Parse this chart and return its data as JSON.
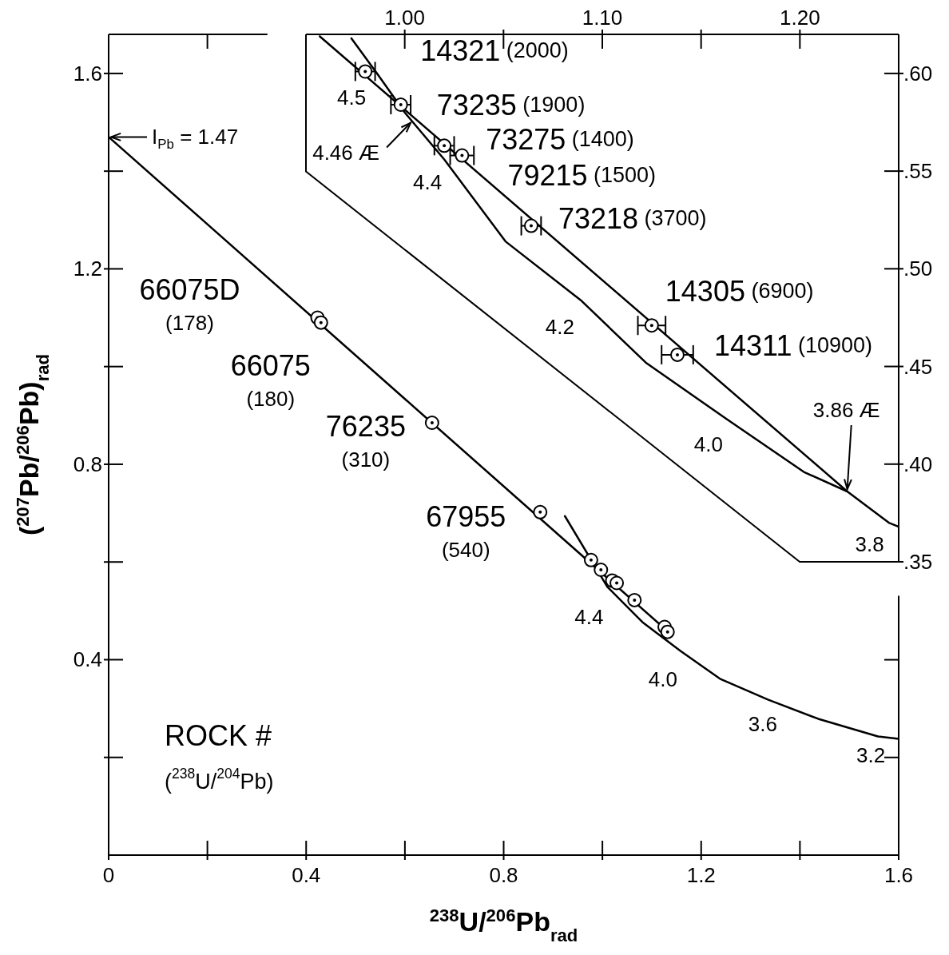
{
  "chart_data": [
    {
      "type": "scatter",
      "xlabel": "$^{238}$U/$^{206}$Pb$_{rad}$",
      "ylabel": "($^{207}$Pb/$^{206}$Pb)$_{rad}$",
      "xlim": [
        0,
        1.6
      ],
      "ylim": [
        0,
        1.68
      ],
      "xticks": [
        0,
        {
          "value": 0.2,
          "label": null
        },
        0.4,
        {
          "value": 0.6,
          "label": null
        },
        0.8,
        {
          "value": 1.0,
          "label": null
        },
        1.2,
        {
          "value": 1.4,
          "label": null
        },
        1.6
      ],
      "yticks": [
        {
          "value": 0.2,
          "label": null
        },
        0.4,
        {
          "value": 0.6,
          "label": null
        },
        0.8,
        {
          "value": 1.0,
          "label": null
        },
        1.2,
        {
          "value": 1.4,
          "label": null
        },
        1.6
      ],
      "series": [
        {
          "type": "line",
          "color": "#000000",
          "x": [
            0,
            1.13
          ],
          "values": [
            1.47,
            0.46
          ]
        },
        {
          "type": "line",
          "color": "#000000",
          "x": [
            0.924,
            1.01,
            1.081,
            1.158,
            1.238,
            1.336,
            1.437,
            1.558,
            1.6
          ],
          "values": [
            0.694,
            0.549,
            0.477,
            0.418,
            0.361,
            0.318,
            0.279,
            0.243,
            0.238
          ]
        },
        {
          "type": "scatter",
          "color": "#000000",
          "marker": "circle",
          "x": [
            0.423,
            0.43,
            0.655,
            0.874,
            0.977,
            0.997,
            1.02,
            1.029,
            1.065,
            1.126,
            1.132
          ],
          "values": [
            1.1,
            1.09,
            0.885,
            0.702,
            0.604,
            0.584,
            0.562,
            0.557,
            0.522,
            0.467,
            0.457
          ]
        }
      ],
      "annotations": [
        {
          "text": "I$_{Pb}$ = 1.47",
          "x": 0,
          "y": 1.47
        },
        {
          "text": "66075D (178)",
          "x": 0.423,
          "y": 1.1
        },
        {
          "text": "66075 (180)",
          "x": 0.43,
          "y": 1.09
        },
        {
          "text": "76235 (310)",
          "x": 0.655,
          "y": 0.885
        },
        {
          "text": "67955 (540)",
          "x": 0.874,
          "y": 0.702
        },
        {
          "text": "4.4",
          "x": 1.01,
          "y": 0.549
        },
        {
          "text": "4.0",
          "x": 1.158,
          "y": 0.418
        },
        {
          "text": "3.6",
          "x": 1.336,
          "y": 0.318
        },
        {
          "text": "3.2",
          "x": 1.558,
          "y": 0.243
        },
        "ROCK #",
        "($^{238}$U/$^{204}$Pb)"
      ]
    },
    {
      "type": "scatter",
      "xlim": [
        0.95,
        1.25
      ],
      "ylim": [
        0.35,
        0.62
      ],
      "xticks": [
        {
          "value": 1.0,
          "label": "1.00"
        },
        {
          "value": 1.05,
          "label": null
        },
        {
          "value": 1.1,
          "label": "1.10"
        },
        {
          "value": 1.15,
          "label": null
        },
        {
          "value": 1.2,
          "label": "1.20"
        }
      ],
      "yticks": [
        {
          "value": 0.35,
          "label": ".35"
        },
        {
          "value": 0.4,
          "label": ".40"
        },
        {
          "value": 0.45,
          "label": ".45"
        },
        {
          "value": 0.5,
          "label": ".50"
        },
        {
          "value": 0.55,
          "label": ".55"
        },
        {
          "value": 0.6,
          "label": ".60"
        }
      ],
      "series": [
        {
          "type": "line",
          "color": "#000000",
          "x": [
            0.957,
            1.224
          ],
          "values": [
            0.619,
            0.386
          ]
        },
        {
          "type": "line",
          "color": "#000000",
          "x": [
            0.973,
            0.986,
            1.0,
            1.02,
            1.051,
            1.089,
            1.122,
            1.163,
            1.202,
            1.224,
            1.245,
            1.25
          ],
          "values": [
            0.618,
            0.6,
            0.58,
            0.556,
            0.514,
            0.484,
            0.452,
            0.423,
            0.396,
            0.386,
            0.37,
            0.368
          ]
        },
        {
          "type": "scatter",
          "color": "#000000",
          "marker": "circle",
          "x": [
            0.98,
            0.998,
            1.02,
            1.029,
            1.064,
            1.125,
            1.138
          ],
          "values": [
            0.601,
            0.584,
            0.563,
            0.558,
            0.522,
            0.471,
            0.456
          ],
          "xerrors": [
            0.005,
            0.005,
            0.005,
            0.006,
            0.005,
            0.007,
            0.008
          ]
        }
      ],
      "annotations": [
        {
          "text": "14321 (2000)",
          "x": 0.98,
          "y": 0.601
        },
        {
          "text": "73235 (1900)",
          "x": 0.998,
          "y": 0.584
        },
        {
          "text": "73275 (1400)",
          "x": 1.02,
          "y": 0.563
        },
        {
          "text": "79215 (1500)",
          "x": 1.029,
          "y": 0.558
        },
        {
          "text": "73218 (3700)",
          "x": 1.064,
          "y": 0.522
        },
        {
          "text": "14305 (6900)",
          "x": 1.125,
          "y": 0.471
        },
        {
          "text": "14311 (10900)",
          "x": 1.138,
          "y": 0.456
        },
        {
          "text": "4.5",
          "x": 0.986,
          "y": 0.6
        },
        {
          "text": "4.46 Æ",
          "x": 1.003,
          "y": 0.576
        },
        {
          "text": "4.4",
          "x": 1.02,
          "y": 0.556
        },
        {
          "text": "4.2",
          "x": 1.089,
          "y": 0.484
        },
        {
          "text": "4.0",
          "x": 1.163,
          "y": 0.423
        },
        {
          "text": "3.86 Æ",
          "x": 1.224,
          "y": 0.386
        },
        {
          "text": "3.8",
          "x": 1.245,
          "y": 0.37
        }
      ]
    }
  ]
}
